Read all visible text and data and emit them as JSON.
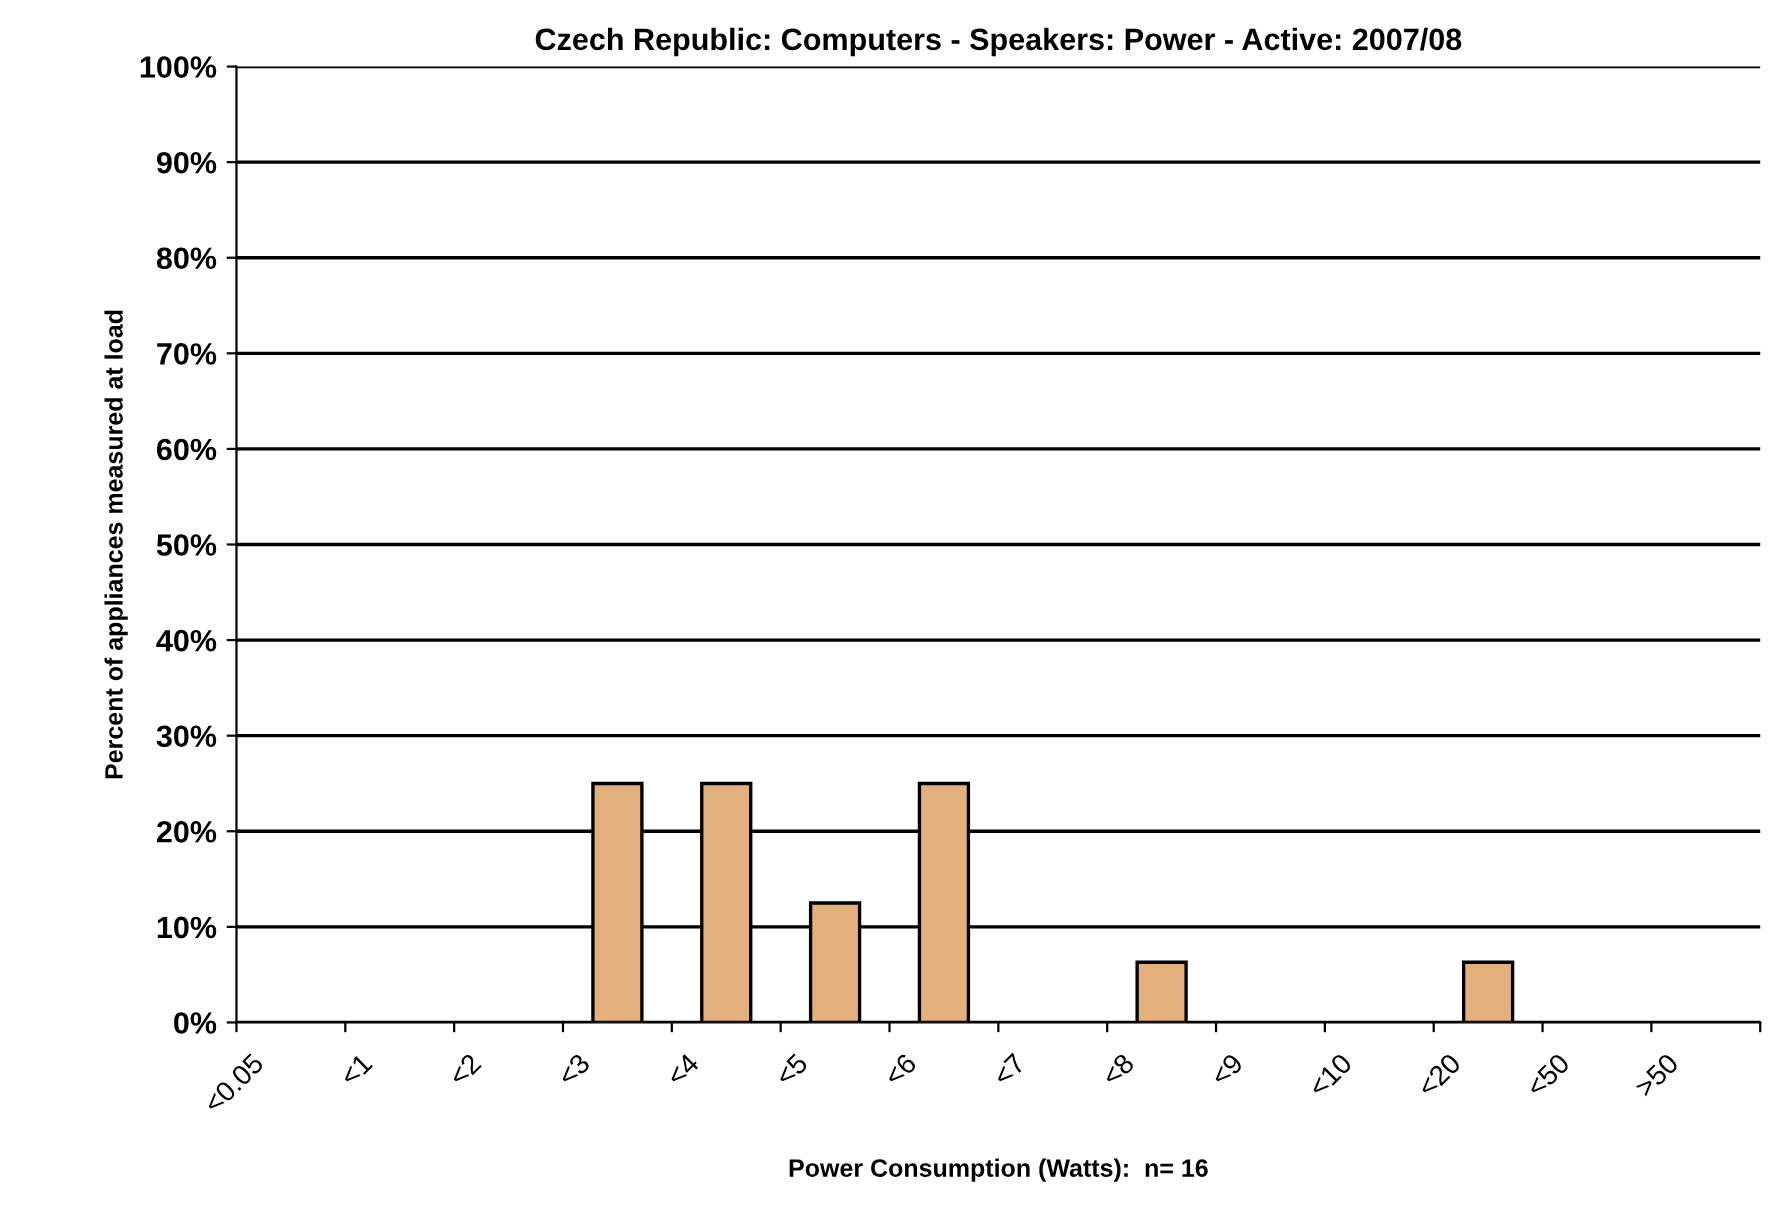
{
  "chart_data": {
    "type": "bar",
    "title": "Czech Republic: Computers - Speakers: Power - Active: 2007/08",
    "xlabel": "Power Consumption (Watts):  n= 16",
    "ylabel": "Percent of appliances measured at load",
    "categories": [
      "<0.05",
      "<1",
      "<2",
      "<3",
      "<4",
      "<5",
      "<6",
      "<7",
      "<8",
      "<9",
      "<10",
      "<20",
      "<50",
      ">50"
    ],
    "values": [
      0,
      0,
      0,
      25,
      25,
      12.5,
      25,
      0,
      6.3,
      0,
      0,
      6.3,
      0,
      0
    ],
    "color": "#e3b07e",
    "ylim": [
      0,
      100
    ],
    "yticks": [
      {
        "value": 0,
        "label": "0%"
      },
      {
        "value": 10,
        "label": "10%"
      },
      {
        "value": 20,
        "label": "20%"
      },
      {
        "value": 30,
        "label": "30%"
      },
      {
        "value": 40,
        "label": "40%"
      },
      {
        "value": 50,
        "label": "50%"
      },
      {
        "value": 60,
        "label": "60%"
      },
      {
        "value": 70,
        "label": "70%"
      },
      {
        "value": 80,
        "label": "80%"
      },
      {
        "value": 90,
        "label": "90%"
      },
      {
        "value": 100,
        "label": "100%"
      }
    ],
    "grid": "y",
    "legend": false
  }
}
